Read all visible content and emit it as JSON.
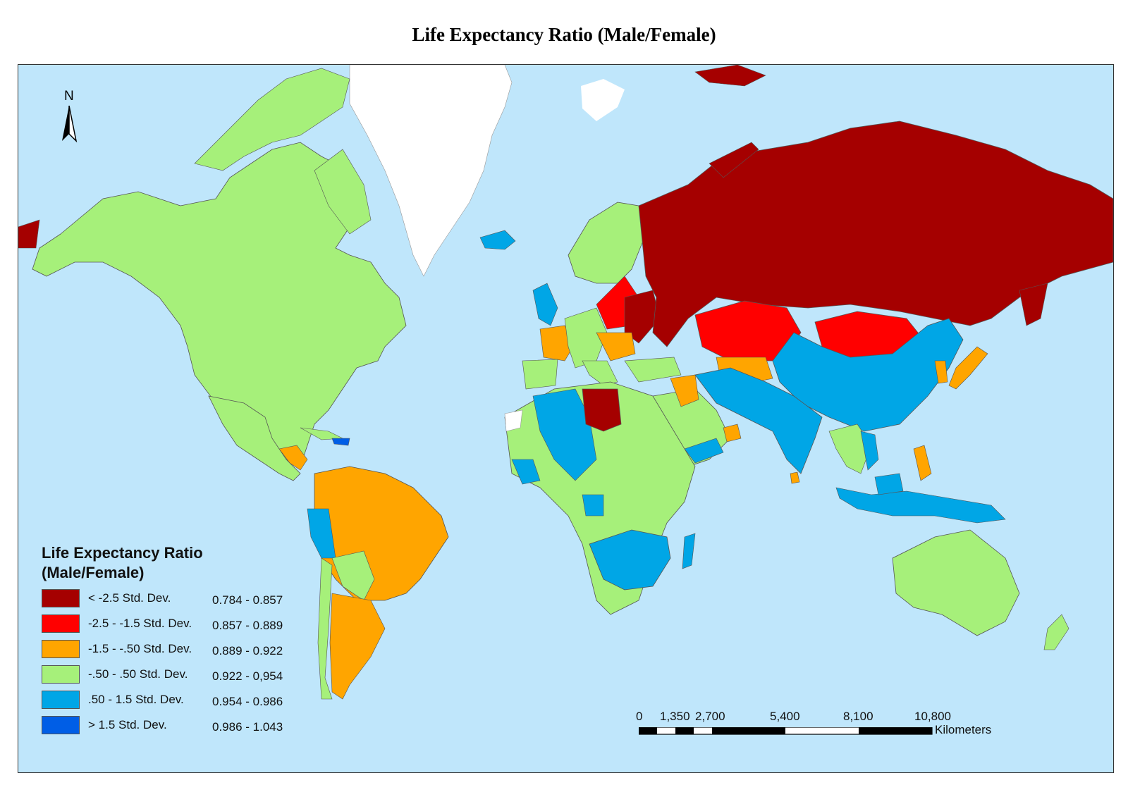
{
  "title": "Life Expectancy Ratio (Male/Female)",
  "north_label": "N",
  "legend": {
    "title_line1": "Life Expectancy Ratio",
    "title_line2": "(Male/Female)",
    "classes": [
      {
        "label": "< -2.5 Std. Dev.",
        "range": "0.784 - 0.857",
        "color": "#a50000"
      },
      {
        "label": "-2.5 - -1.5 Std. Dev.",
        "range": "0.857 - 0.889",
        "color": "#ff0000"
      },
      {
        "label": "-1.5 - -.50 Std. Dev.",
        "range": "0.889 - 0.922",
        "color": "#ffa500"
      },
      {
        "label": "-.50 - .50 Std. Dev.",
        "range": "0.922 - 0,954",
        "color": "#a6f07a"
      },
      {
        "label": ".50 - 1.5 Std. Dev.",
        "range": "0.954 - 0.986",
        "color": "#00a6e6"
      },
      {
        "label": "> 1.5 Std. Dev.",
        "range": "0.986 - 1.043",
        "color": "#005ee6"
      }
    ]
  },
  "scale": {
    "ticks": [
      "0",
      "1,350",
      "2,700",
      "5,400",
      "8,100",
      "10,800"
    ],
    "unit": "Kilometers"
  },
  "colors": {
    "ocean": "#bfe6fb",
    "greenland": "#ffffff",
    "border": "#555555"
  }
}
